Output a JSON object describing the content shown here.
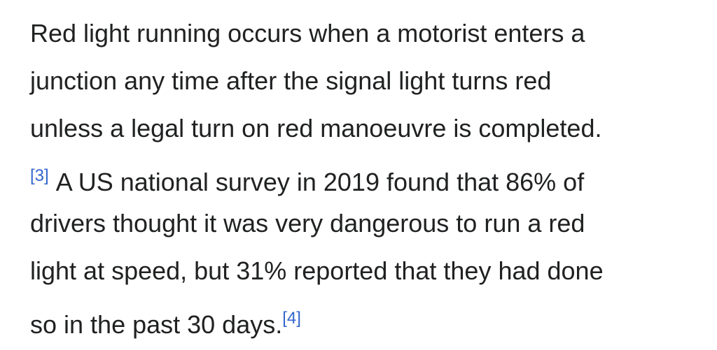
{
  "paragraph": {
    "lines": [
      [
        {
          "text": "Red light running occurs when a motorist enters a"
        }
      ],
      [
        {
          "text": "junction any time after the signal light turns red"
        }
      ],
      [
        {
          "text": "unless a legal turn on red manoeuvre is completed."
        }
      ],
      [
        {
          "ref": "[3]"
        },
        {
          "text": "A US national survey in 2019 found that 86% of"
        }
      ],
      [
        {
          "text": "drivers thought it was very dangerous to run a red"
        }
      ],
      [
        {
          "text": "light at speed, but 31% reported that they had done"
        }
      ],
      [
        {
          "text": "so in the past 30 days."
        },
        {
          "ref": "[4]"
        }
      ]
    ]
  }
}
